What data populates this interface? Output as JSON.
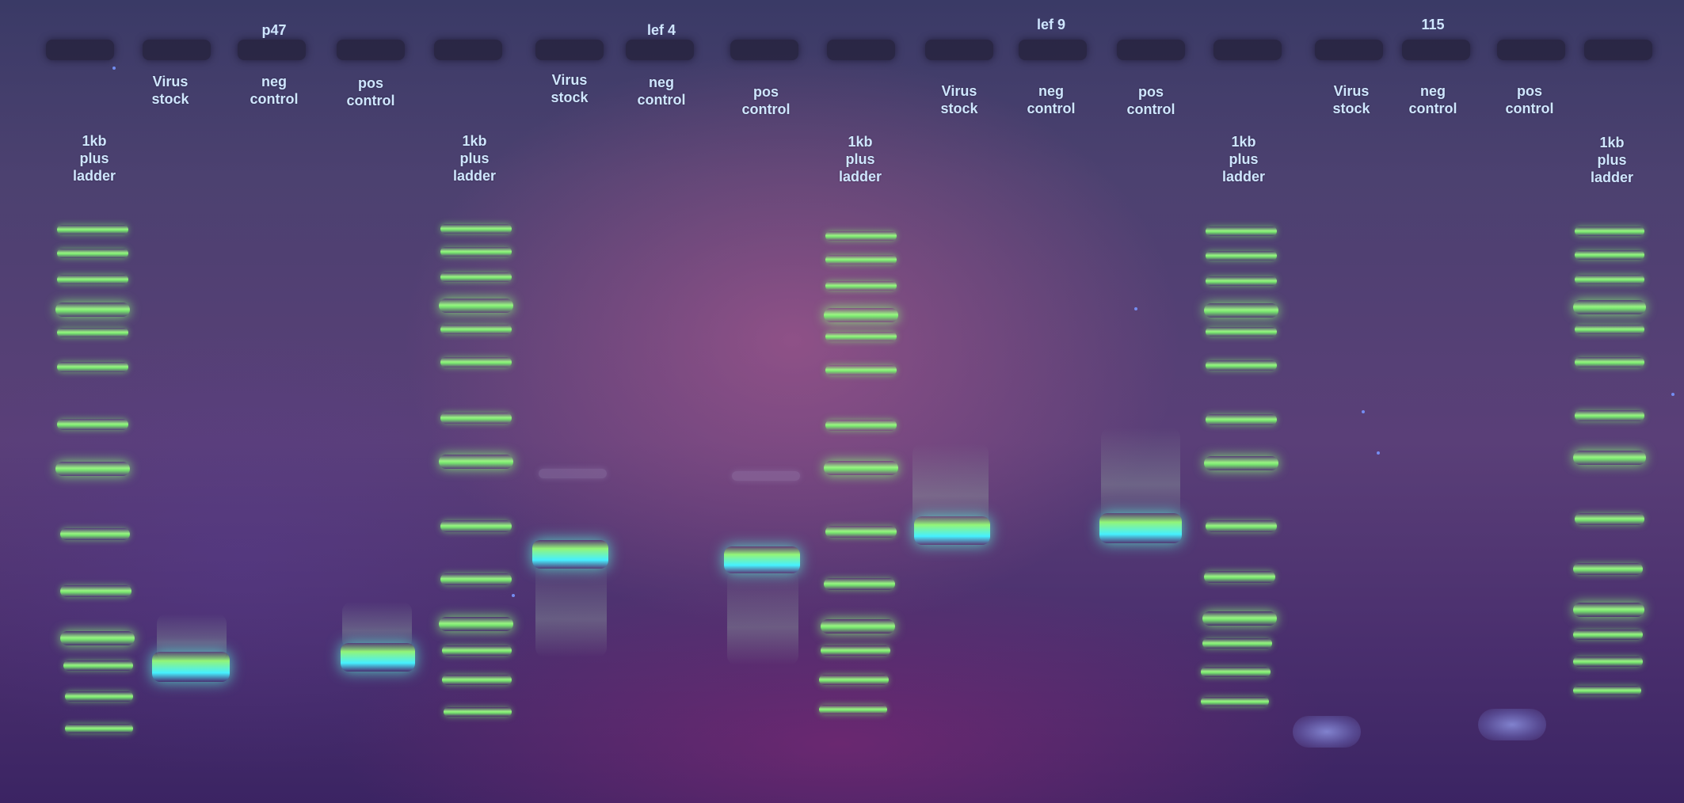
{
  "titles": {
    "p47": "p47",
    "lef4": "lef 4",
    "lef9": "lef 9",
    "g115": "115"
  },
  "lane_labels": {
    "ladder": "1kb\nplus\nladder",
    "virus_stock": "Virus\nstock",
    "neg_control": "neg\ncontrol",
    "pos_control": "pos\ncontrol"
  },
  "colors": {
    "ladder_band": "#9cff82",
    "product_band": "#46f0ff",
    "background": "#4c3a72",
    "label_text": "#cfe6ff"
  }
}
